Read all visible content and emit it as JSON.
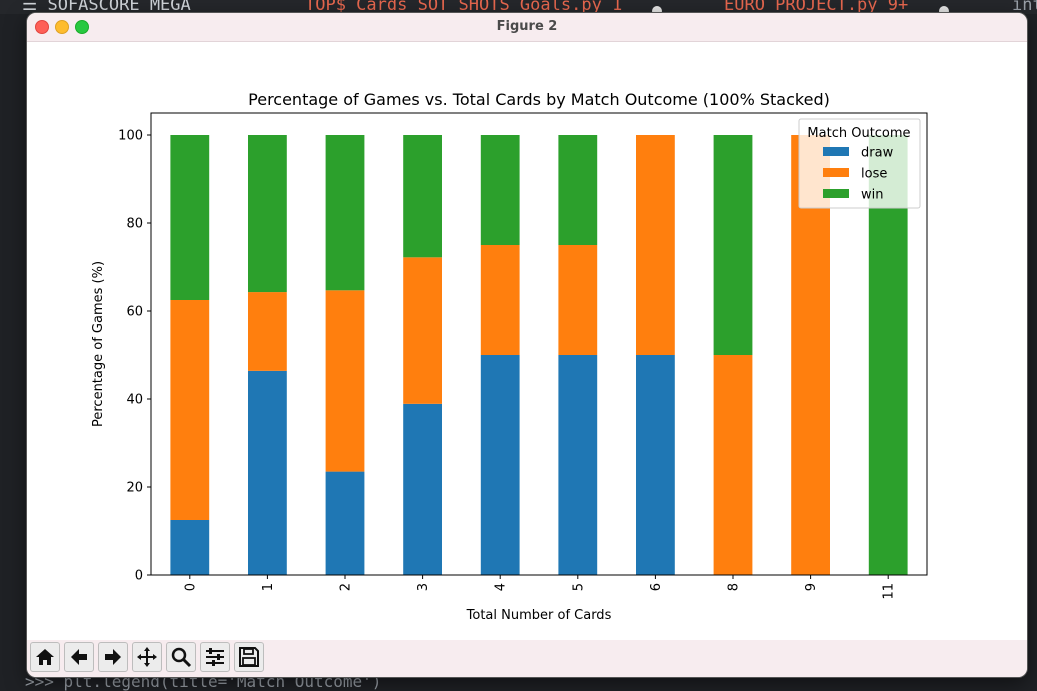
{
  "window": {
    "title": "Figure 2"
  },
  "background": {
    "tab1": "☰ SOFASCORE_MEGA",
    "tab2": "TOP$_Cards_SOT_SHOTS_Goals.py 1",
    "tab3": "EURO_PROJECT.py 9+",
    "tab4": "inte",
    "console": ">>> plt.legend(title='Match Outcome')"
  },
  "toolbar": {
    "buttons": [
      "home-icon",
      "back-arrow-icon",
      "forward-arrow-icon",
      "pan-icon",
      "zoom-icon",
      "configure-subplots-icon",
      "save-icon"
    ]
  },
  "chart_data": {
    "type": "bar",
    "stacked": true,
    "title": "Percentage of Games vs. Total Cards by Match Outcome (100% Stacked)",
    "xlabel": "Total Number of Cards",
    "ylabel": "Percentage of Games (%)",
    "ylim": [
      0,
      105
    ],
    "yticks": [
      "0",
      "20",
      "40",
      "60",
      "80",
      "100"
    ],
    "categories": [
      "0",
      "1",
      "2",
      "3",
      "4",
      "5",
      "6",
      "8",
      "9",
      "11"
    ],
    "series": [
      {
        "name": "draw",
        "color": "#1f77b4",
        "values": [
          12.5,
          46.4,
          23.5,
          38.9,
          50,
          50,
          50,
          0,
          0,
          0
        ]
      },
      {
        "name": "lose",
        "color": "#ff7f0e",
        "values": [
          50,
          17.9,
          41.2,
          33.3,
          25,
          25,
          50,
          50,
          100,
          0
        ]
      },
      {
        "name": "win",
        "color": "#2ca02c",
        "values": [
          37.5,
          35.7,
          35.3,
          27.8,
          25,
          25,
          0,
          50,
          0,
          100
        ]
      }
    ],
    "legend": {
      "title": "Match Outcome",
      "position": "top-right"
    },
    "grid": false
  }
}
